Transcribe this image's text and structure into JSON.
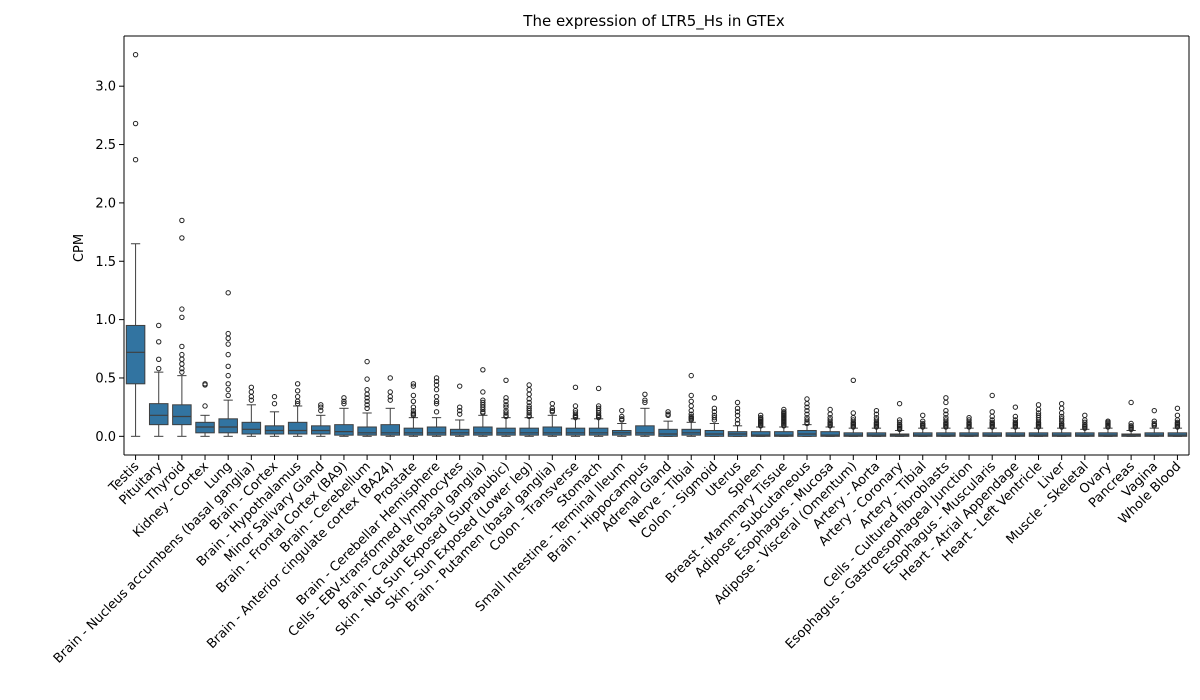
{
  "chart_data": {
    "type": "box",
    "title": "The expression of LTR5_Hs in GTEx",
    "xlabel": "",
    "ylabel": "CPM",
    "ylim": [
      -0.16,
      3.43
    ],
    "yticks": [
      "0.0",
      "0.5",
      "1.0",
      "1.5",
      "2.0",
      "2.5",
      "3.0"
    ],
    "grid": false,
    "legend": "none",
    "box_color": "#3274a1",
    "edge_color": "#3f3f3f",
    "categories": [
      {
        "label": "Testis",
        "q1": 0.45,
        "median": 0.72,
        "q3": 0.95,
        "whisker_low": 0.0,
        "whisker_high": 1.65,
        "outliers": [
          3.27,
          2.68,
          2.37
        ]
      },
      {
        "label": "Pituitary",
        "q1": 0.1,
        "median": 0.18,
        "q3": 0.28,
        "whisker_low": 0.0,
        "whisker_high": 0.55,
        "outliers": [
          0.95,
          0.81,
          0.66,
          0.58
        ]
      },
      {
        "label": "Thyroid",
        "q1": 0.1,
        "median": 0.17,
        "q3": 0.27,
        "whisker_low": 0.0,
        "whisker_high": 0.52,
        "outliers": [
          1.85,
          1.7,
          1.09,
          1.02,
          0.77,
          0.7,
          0.66,
          0.62,
          0.58,
          0.55
        ]
      },
      {
        "label": "Kidney - Cortex",
        "q1": 0.03,
        "median": 0.08,
        "q3": 0.12,
        "whisker_low": 0.0,
        "whisker_high": 0.18,
        "outliers": [
          0.45,
          0.44,
          0.26
        ]
      },
      {
        "label": "Lung",
        "q1": 0.03,
        "median": 0.08,
        "q3": 0.15,
        "whisker_low": 0.0,
        "whisker_high": 0.31,
        "outliers": [
          1.23,
          0.88,
          0.84,
          0.79,
          0.7,
          0.6,
          0.52,
          0.45,
          0.4,
          0.35
        ]
      },
      {
        "label": "Brain - Nucleus accumbens (basal ganglia)",
        "q1": 0.02,
        "median": 0.06,
        "q3": 0.12,
        "whisker_low": 0.0,
        "whisker_high": 0.27,
        "outliers": [
          0.42,
          0.38,
          0.34,
          0.31
        ]
      },
      {
        "label": "Brain - Cortex",
        "q1": 0.02,
        "median": 0.05,
        "q3": 0.09,
        "whisker_low": 0.0,
        "whisker_high": 0.21,
        "outliers": [
          0.34,
          0.28
        ]
      },
      {
        "label": "Brain - Hypothalamus",
        "q1": 0.02,
        "median": 0.05,
        "q3": 0.12,
        "whisker_low": 0.0,
        "whisker_high": 0.26,
        "outliers": [
          0.45,
          0.39,
          0.34,
          0.3,
          0.28
        ]
      },
      {
        "label": "Minor Salivary Gland",
        "q1": 0.02,
        "median": 0.05,
        "q3": 0.09,
        "whisker_low": 0.0,
        "whisker_high": 0.18,
        "outliers": [
          0.27,
          0.25,
          0.22
        ]
      },
      {
        "label": "Brain - Frontal Cortex (BA9)",
        "q1": 0.01,
        "median": 0.04,
        "q3": 0.1,
        "whisker_low": 0.0,
        "whisker_high": 0.24,
        "outliers": [
          0.33,
          0.3,
          0.28
        ]
      },
      {
        "label": "Brain - Cerebellum",
        "q1": 0.01,
        "median": 0.03,
        "q3": 0.08,
        "whisker_low": 0.0,
        "whisker_high": 0.2,
        "outliers": [
          0.64,
          0.49,
          0.4,
          0.36,
          0.33,
          0.3,
          0.27,
          0.24
        ]
      },
      {
        "label": "Brain - Anterior cingulate cortex (BA24)",
        "q1": 0.01,
        "median": 0.03,
        "q3": 0.1,
        "whisker_low": 0.0,
        "whisker_high": 0.24,
        "outliers": [
          0.5,
          0.38,
          0.34,
          0.31
        ]
      },
      {
        "label": "Prostate",
        "q1": 0.01,
        "median": 0.03,
        "q3": 0.07,
        "whisker_low": 0.0,
        "whisker_high": 0.16,
        "outliers": [
          0.45,
          0.43,
          0.35,
          0.3,
          0.25,
          0.22,
          0.2,
          0.19,
          0.18
        ]
      },
      {
        "label": "Brain - Cerebellar Hemisphere",
        "q1": 0.01,
        "median": 0.03,
        "q3": 0.08,
        "whisker_low": 0.0,
        "whisker_high": 0.16,
        "outliers": [
          0.5,
          0.47,
          0.44,
          0.4,
          0.34,
          0.3,
          0.28,
          0.21
        ]
      },
      {
        "label": "Cells - EBV-transformed lymphocytes",
        "q1": 0.01,
        "median": 0.03,
        "q3": 0.06,
        "whisker_low": 0.0,
        "whisker_high": 0.14,
        "outliers": [
          0.43,
          0.25,
          0.22,
          0.19
        ]
      },
      {
        "label": "Brain - Caudate (basal ganglia)",
        "q1": 0.01,
        "median": 0.03,
        "q3": 0.08,
        "whisker_low": 0.0,
        "whisker_high": 0.18,
        "outliers": [
          0.57,
          0.38,
          0.31,
          0.29,
          0.27,
          0.25,
          0.23,
          0.21,
          0.2
        ]
      },
      {
        "label": "Skin - Not Sun Exposed (Suprapubic)",
        "q1": 0.01,
        "median": 0.03,
        "q3": 0.07,
        "whisker_low": 0.0,
        "whisker_high": 0.16,
        "outliers": [
          0.48,
          0.33,
          0.3,
          0.27,
          0.25,
          0.22,
          0.2,
          0.18,
          0.17
        ]
      },
      {
        "label": "Skin - Sun Exposed (Lower leg)",
        "q1": 0.01,
        "median": 0.03,
        "q3": 0.07,
        "whisker_low": 0.0,
        "whisker_high": 0.16,
        "outliers": [
          0.44,
          0.4,
          0.36,
          0.32,
          0.29,
          0.26,
          0.24,
          0.22,
          0.2,
          0.18,
          0.17
        ]
      },
      {
        "label": "Brain - Putamen (basal ganglia)",
        "q1": 0.01,
        "median": 0.03,
        "q3": 0.08,
        "whisker_low": 0.0,
        "whisker_high": 0.18,
        "outliers": [
          0.28,
          0.24,
          0.22,
          0.21
        ]
      },
      {
        "label": "Colon - Transverse",
        "q1": 0.01,
        "median": 0.03,
        "q3": 0.07,
        "whisker_low": 0.0,
        "whisker_high": 0.15,
        "outliers": [
          0.42,
          0.26,
          0.22,
          0.2,
          0.18,
          0.17,
          0.16
        ]
      },
      {
        "label": "Stomach",
        "q1": 0.01,
        "median": 0.03,
        "q3": 0.07,
        "whisker_low": 0.0,
        "whisker_high": 0.15,
        "outliers": [
          0.41,
          0.26,
          0.24,
          0.22,
          0.2,
          0.18,
          0.17,
          0.16
        ]
      },
      {
        "label": "Small Intestine - Terminal Ileum",
        "q1": 0.01,
        "median": 0.03,
        "q3": 0.05,
        "whisker_low": 0.0,
        "whisker_high": 0.11,
        "outliers": [
          0.22,
          0.17,
          0.15,
          0.14
        ]
      },
      {
        "label": "Brain - Hippocampus",
        "q1": 0.01,
        "median": 0.03,
        "q3": 0.09,
        "whisker_low": 0.0,
        "whisker_high": 0.24,
        "outliers": [
          0.36,
          0.31,
          0.29
        ]
      },
      {
        "label": "Adrenal Gland",
        "q1": 0.0,
        "median": 0.02,
        "q3": 0.06,
        "whisker_low": 0.0,
        "whisker_high": 0.13,
        "outliers": [
          0.21,
          0.19,
          0.18
        ]
      },
      {
        "label": "Nerve - Tibial",
        "q1": 0.01,
        "median": 0.03,
        "q3": 0.06,
        "whisker_low": 0.0,
        "whisker_high": 0.12,
        "outliers": [
          0.52,
          0.35,
          0.3,
          0.26,
          0.22,
          0.19,
          0.17,
          0.16,
          0.15,
          0.14
        ]
      },
      {
        "label": "Colon - Sigmoid",
        "q1": 0.0,
        "median": 0.02,
        "q3": 0.05,
        "whisker_low": 0.0,
        "whisker_high": 0.11,
        "outliers": [
          0.33,
          0.24,
          0.21,
          0.18,
          0.16,
          0.14
        ]
      },
      {
        "label": "Uterus",
        "q1": 0.0,
        "median": 0.02,
        "q3": 0.04,
        "whisker_low": 0.0,
        "whisker_high": 0.09,
        "outliers": [
          0.29,
          0.24,
          0.21,
          0.18,
          0.14,
          0.11
        ]
      },
      {
        "label": "Spleen",
        "q1": 0.0,
        "median": 0.01,
        "q3": 0.04,
        "whisker_low": 0.0,
        "whisker_high": 0.08,
        "outliers": [
          0.18,
          0.16,
          0.15,
          0.14,
          0.13,
          0.12,
          0.11,
          0.1,
          0.09
        ]
      },
      {
        "label": "Breast - Mammary Tissue",
        "q1": 0.0,
        "median": 0.01,
        "q3": 0.04,
        "whisker_low": 0.0,
        "whisker_high": 0.08,
        "outliers": [
          0.23,
          0.21,
          0.2,
          0.19,
          0.18,
          0.17,
          0.16,
          0.15,
          0.14,
          0.13,
          0.12,
          0.11,
          0.1,
          0.09
        ]
      },
      {
        "label": "Adipose - Subcutaneous",
        "q1": 0.0,
        "median": 0.02,
        "q3": 0.05,
        "whisker_low": 0.0,
        "whisker_high": 0.1,
        "outliers": [
          0.32,
          0.28,
          0.25,
          0.22,
          0.19,
          0.16,
          0.14,
          0.12,
          0.11
        ]
      },
      {
        "label": "Esophagus - Mucosa",
        "q1": 0.0,
        "median": 0.01,
        "q3": 0.04,
        "whisker_low": 0.0,
        "whisker_high": 0.08,
        "outliers": [
          0.23,
          0.19,
          0.16,
          0.14,
          0.12,
          0.11,
          0.1,
          0.09
        ]
      },
      {
        "label": "Adipose - Visceral (Omentum)",
        "q1": 0.0,
        "median": 0.01,
        "q3": 0.03,
        "whisker_low": 0.0,
        "whisker_high": 0.07,
        "outliers": [
          0.48,
          0.2,
          0.16,
          0.14,
          0.12,
          0.11,
          0.1,
          0.09,
          0.08
        ]
      },
      {
        "label": "Artery - Aorta",
        "q1": 0.0,
        "median": 0.01,
        "q3": 0.03,
        "whisker_low": 0.0,
        "whisker_high": 0.07,
        "outliers": [
          0.22,
          0.19,
          0.16,
          0.14,
          0.12,
          0.11,
          0.1,
          0.09,
          0.08
        ]
      },
      {
        "label": "Artery - Coronary",
        "q1": 0.0,
        "median": 0.01,
        "q3": 0.02,
        "whisker_low": 0.0,
        "whisker_high": 0.05,
        "outliers": [
          0.28,
          0.14,
          0.12,
          0.1,
          0.09,
          0.08,
          0.07,
          0.06
        ]
      },
      {
        "label": "Artery - Tibial",
        "q1": 0.0,
        "median": 0.01,
        "q3": 0.03,
        "whisker_low": 0.0,
        "whisker_high": 0.07,
        "outliers": [
          0.18,
          0.13,
          0.11,
          0.1,
          0.09,
          0.08
        ]
      },
      {
        "label": "Cells - Cultured fibroblasts",
        "q1": 0.0,
        "median": 0.01,
        "q3": 0.03,
        "whisker_low": 0.0,
        "whisker_high": 0.07,
        "outliers": [
          0.33,
          0.29,
          0.22,
          0.19,
          0.16,
          0.14,
          0.12,
          0.11,
          0.1,
          0.09,
          0.08
        ]
      },
      {
        "label": "Esophagus - Gastroesophageal Junction",
        "q1": 0.0,
        "median": 0.01,
        "q3": 0.03,
        "whisker_low": 0.0,
        "whisker_high": 0.07,
        "outliers": [
          0.16,
          0.14,
          0.12,
          0.11,
          0.1,
          0.09,
          0.08
        ]
      },
      {
        "label": "Esophagus - Muscularis",
        "q1": 0.0,
        "median": 0.01,
        "q3": 0.03,
        "whisker_low": 0.0,
        "whisker_high": 0.07,
        "outliers": [
          0.35,
          0.21,
          0.17,
          0.14,
          0.12,
          0.11,
          0.1,
          0.09,
          0.08
        ]
      },
      {
        "label": "Heart - Atrial Appendage",
        "q1": 0.0,
        "median": 0.01,
        "q3": 0.03,
        "whisker_low": 0.0,
        "whisker_high": 0.07,
        "outliers": [
          0.25,
          0.17,
          0.14,
          0.12,
          0.11,
          0.1,
          0.09,
          0.08
        ]
      },
      {
        "label": "Heart - Left Ventricle",
        "q1": 0.0,
        "median": 0.01,
        "q3": 0.03,
        "whisker_low": 0.0,
        "whisker_high": 0.07,
        "outliers": [
          0.27,
          0.23,
          0.2,
          0.18,
          0.16,
          0.14,
          0.12,
          0.11,
          0.1,
          0.09,
          0.08
        ]
      },
      {
        "label": "Liver",
        "q1": 0.0,
        "median": 0.01,
        "q3": 0.03,
        "whisker_low": 0.0,
        "whisker_high": 0.07,
        "outliers": [
          0.28,
          0.24,
          0.2,
          0.17,
          0.15,
          0.13,
          0.11,
          0.1,
          0.09,
          0.08
        ]
      },
      {
        "label": "Muscle - Skeletal",
        "q1": 0.0,
        "median": 0.01,
        "q3": 0.03,
        "whisker_low": 0.0,
        "whisker_high": 0.06,
        "outliers": [
          0.18,
          0.14,
          0.12,
          0.1,
          0.09,
          0.08,
          0.07
        ]
      },
      {
        "label": "Ovary",
        "q1": 0.0,
        "median": 0.01,
        "q3": 0.03,
        "whisker_low": 0.0,
        "whisker_high": 0.07,
        "outliers": [
          0.13,
          0.12,
          0.11,
          0.1,
          0.09,
          0.08
        ]
      },
      {
        "label": "Pancreas",
        "q1": 0.0,
        "median": 0.01,
        "q3": 0.02,
        "whisker_low": 0.0,
        "whisker_high": 0.05,
        "outliers": [
          0.29,
          0.11,
          0.09,
          0.08,
          0.07,
          0.06
        ]
      },
      {
        "label": "Vagina",
        "q1": 0.0,
        "median": 0.01,
        "q3": 0.03,
        "whisker_low": 0.0,
        "whisker_high": 0.07,
        "outliers": [
          0.22,
          0.13,
          0.11,
          0.1,
          0.09
        ]
      },
      {
        "label": "Whole Blood",
        "q1": 0.0,
        "median": 0.01,
        "q3": 0.03,
        "whisker_low": 0.0,
        "whisker_high": 0.07,
        "outliers": [
          0.24,
          0.18,
          0.14,
          0.12,
          0.11,
          0.1,
          0.09,
          0.08
        ]
      }
    ]
  }
}
